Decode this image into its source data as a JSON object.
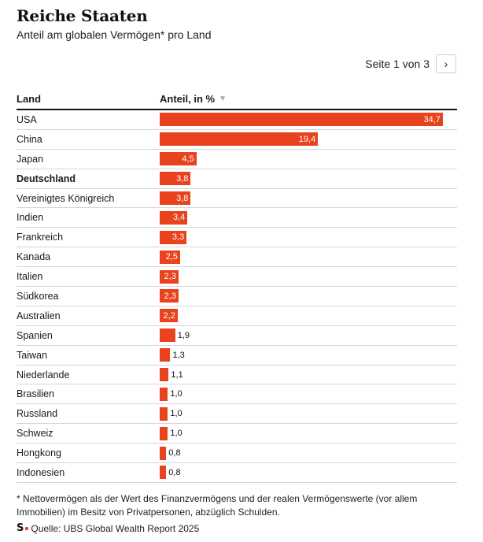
{
  "header": {
    "title": "Reiche Staaten",
    "subtitle": "Anteil am globalen Vermögen* pro Land"
  },
  "pager": {
    "text": "Seite 1 von 3",
    "next_icon": "›"
  },
  "table": {
    "col_country": "Land",
    "col_share": "Anteil, in %",
    "sort_icon": "▼"
  },
  "colors": {
    "bar": "#e8431c"
  },
  "chart_data": {
    "type": "bar",
    "orientation": "horizontal",
    "xlim": [
      0,
      35
    ],
    "highlight": "Deutschland",
    "rows": [
      {
        "country": "USA",
        "value": 34.7,
        "label": "34,7"
      },
      {
        "country": "China",
        "value": 19.4,
        "label": "19,4"
      },
      {
        "country": "Japan",
        "value": 4.5,
        "label": "4,5"
      },
      {
        "country": "Deutschland",
        "value": 3.8,
        "label": "3,8"
      },
      {
        "country": "Vereinigtes Königreich",
        "value": 3.8,
        "label": "3,8"
      },
      {
        "country": "Indien",
        "value": 3.4,
        "label": "3,4"
      },
      {
        "country": "Frankreich",
        "value": 3.3,
        "label": "3,3"
      },
      {
        "country": "Kanada",
        "value": 2.5,
        "label": "2,5"
      },
      {
        "country": "Italien",
        "value": 2.3,
        "label": "2,3"
      },
      {
        "country": "Südkorea",
        "value": 2.3,
        "label": "2,3"
      },
      {
        "country": "Australien",
        "value": 2.2,
        "label": "2,2"
      },
      {
        "country": "Spanien",
        "value": 1.9,
        "label": "1,9"
      },
      {
        "country": "Taiwan",
        "value": 1.3,
        "label": "1,3"
      },
      {
        "country": "Niederlande",
        "value": 1.1,
        "label": "1,1"
      },
      {
        "country": "Brasilien",
        "value": 1.0,
        "label": "1,0"
      },
      {
        "country": "Russland",
        "value": 1.0,
        "label": "1,0"
      },
      {
        "country": "Schweiz",
        "value": 1.0,
        "label": "1,0"
      },
      {
        "country": "Hongkong",
        "value": 0.8,
        "label": "0,8"
      },
      {
        "country": "Indonesien",
        "value": 0.8,
        "label": "0,8"
      }
    ]
  },
  "footer": {
    "footnote": "* Nettovermögen als der Wert des Finanzvermögens und der realen Vermögenswerte (vor allem Immobilien) im Besitz von Privatpersonen, abzüglich Schulden.",
    "logo": "S",
    "source": "Quelle: UBS Global Wealth Report 2025"
  }
}
